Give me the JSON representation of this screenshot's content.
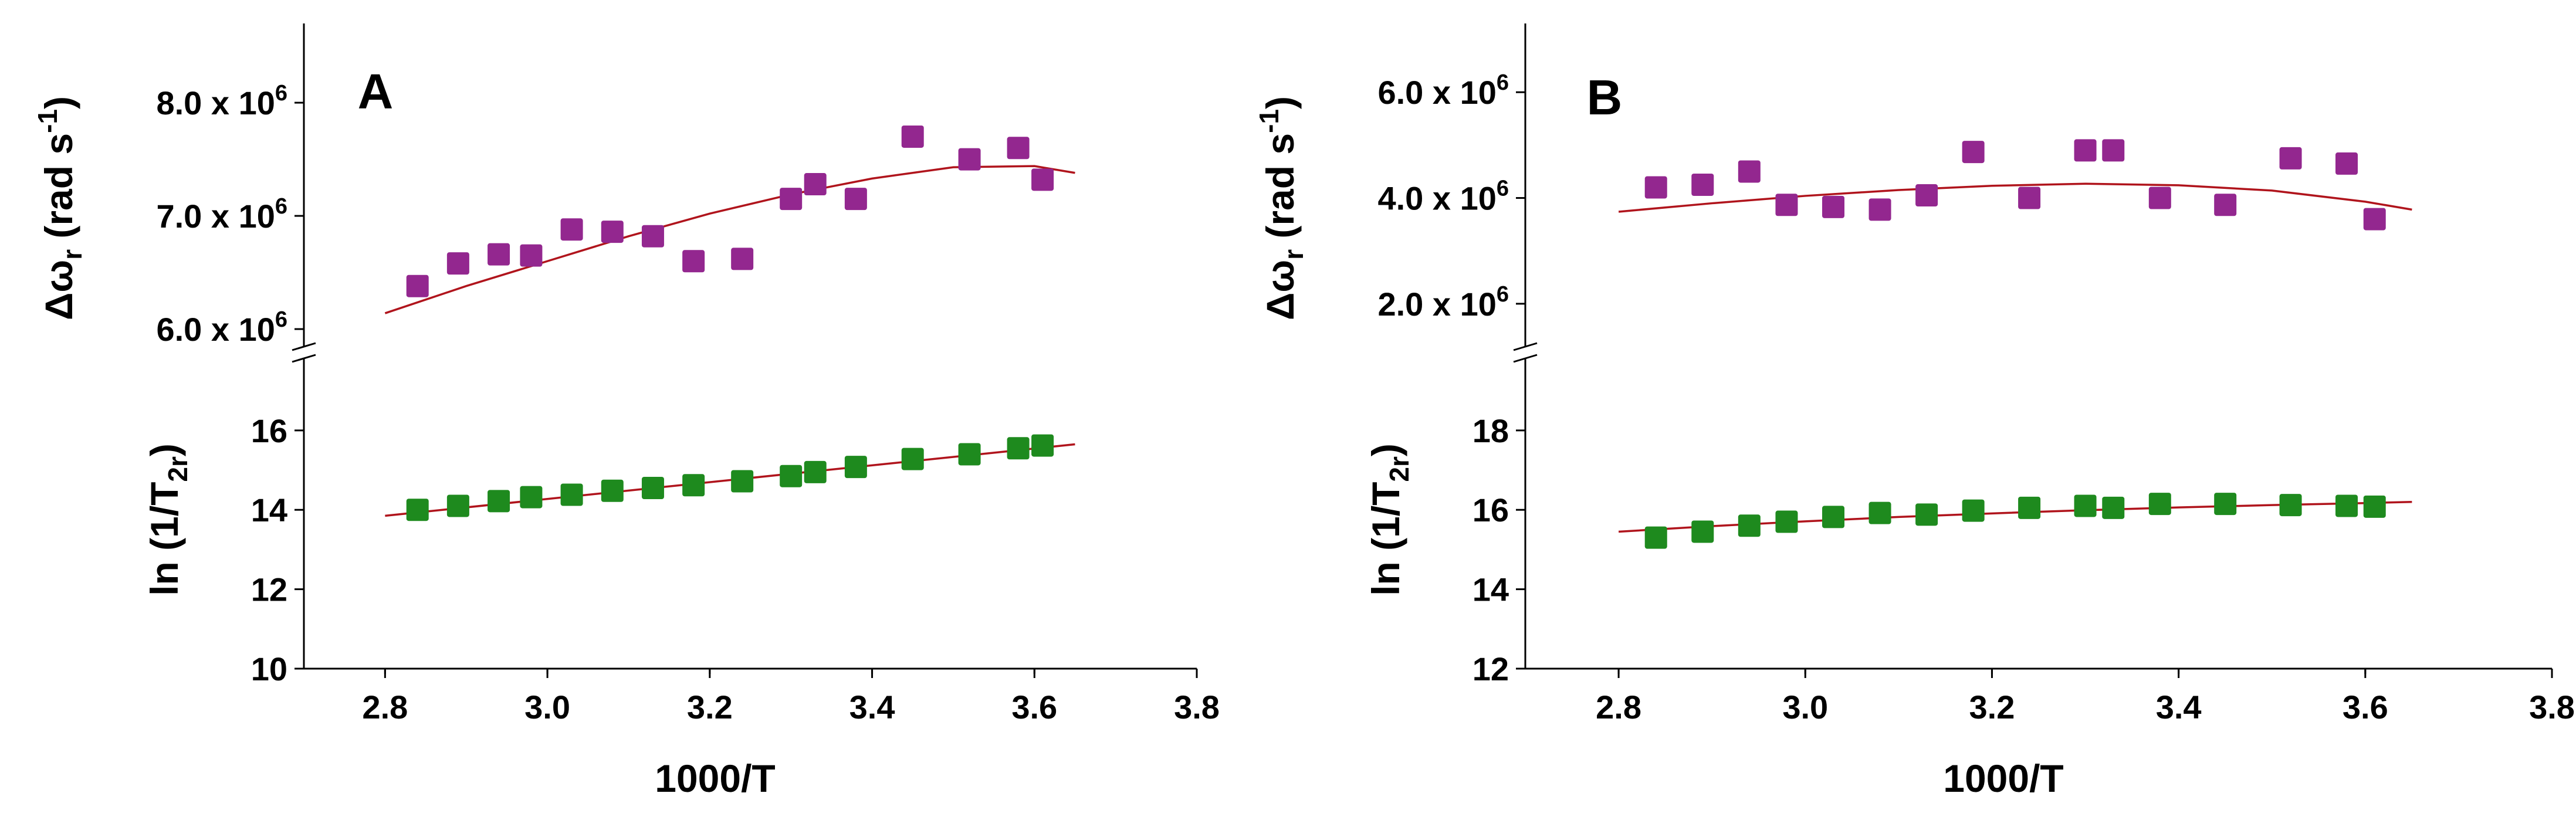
{
  "chart_data": [
    {
      "type": "scatter",
      "panel_label": "A",
      "xlabel": "1000/T",
      "xlim": [
        2.7,
        3.8
      ],
      "xticks": [
        "2.8",
        "3.0",
        "3.2",
        "3.4",
        "3.6",
        "3.8"
      ],
      "upper": {
        "ylabel": "Δω",
        "ylabel_sub": "r",
        "ylabel_units": " (rad s",
        "ylabel_sup": "-1",
        "ylabel_close": ")",
        "ylim": [
          5.85,
          8.7
        ],
        "yticks": [
          {
            "value": 6.0,
            "mantissa": "6.0 x 10",
            "exp": "6"
          },
          {
            "value": 7.0,
            "mantissa": "7.0 x 10",
            "exp": "6"
          },
          {
            "value": 8.0,
            "mantissa": "8.0 x 10",
            "exp": "6"
          }
        ],
        "series": [
          {
            "name": "Δω_r (x 10^6 rad s^-1)",
            "color": "#93278F",
            "x": [
              2.84,
              2.89,
              2.94,
              2.98,
              3.03,
              3.08,
              3.13,
              3.18,
              3.24,
              3.3,
              3.33,
              3.38,
              3.45,
              3.52,
              3.58,
              3.61
            ],
            "y": [
              6.38,
              6.58,
              6.66,
              6.65,
              6.88,
              6.86,
              6.82,
              6.6,
              6.62,
              7.15,
              7.28,
              7.15,
              7.7,
              7.5,
              7.6,
              7.32
            ]
          }
        ],
        "fit": {
          "color": "#B0141C",
          "x": [
            2.8,
            2.9,
            3.0,
            3.1,
            3.2,
            3.3,
            3.4,
            3.5,
            3.6,
            3.65
          ],
          "y": [
            6.14,
            6.38,
            6.6,
            6.82,
            7.02,
            7.19,
            7.33,
            7.43,
            7.44,
            7.38
          ]
        }
      },
      "lower": {
        "ylabel": "ln (1/T",
        "ylabel_sub": "2r",
        "ylabel_close": ")",
        "ylim": [
          10,
          17.8
        ],
        "yticks": [
          "10",
          "12",
          "14",
          "16"
        ],
        "series": [
          {
            "name": "ln(1/T_2r)",
            "color": "#1E8A1E",
            "x": [
              2.84,
              2.89,
              2.94,
              2.98,
              3.03,
              3.08,
              3.13,
              3.18,
              3.24,
              3.3,
              3.33,
              3.38,
              3.45,
              3.52,
              3.58,
              3.61
            ],
            "y": [
              14.0,
              14.1,
              14.22,
              14.32,
              14.38,
              14.48,
              14.55,
              14.62,
              14.72,
              14.85,
              14.95,
              15.08,
              15.28,
              15.4,
              15.55,
              15.62
            ]
          }
        ],
        "fit": {
          "color": "#B0141C",
          "x": [
            2.8,
            3.65
          ],
          "y": [
            13.85,
            15.65
          ]
        }
      }
    },
    {
      "type": "scatter",
      "panel_label": "B",
      "xlabel": "1000/T",
      "xlim": [
        2.7,
        3.8
      ],
      "xticks": [
        "2.8",
        "3.0",
        "3.2",
        "3.4",
        "3.6",
        "3.8"
      ],
      "upper": {
        "ylabel": "Δω",
        "ylabel_sub": "r",
        "ylabel_units": " (rad s",
        "ylabel_sup": "-1",
        "ylabel_close": ")",
        "ylim": [
          1.2,
          7.3
        ],
        "yticks": [
          {
            "value": 2.0,
            "mantissa": "2.0 x 10",
            "exp": "6"
          },
          {
            "value": 4.0,
            "mantissa": "4.0 x 10",
            "exp": "6"
          },
          {
            "value": 6.0,
            "mantissa": "6.0 x 10",
            "exp": "6"
          }
        ],
        "series": [
          {
            "name": "Δω_r (x 10^6 rad s^-1)",
            "color": "#93278F",
            "x": [
              2.84,
              2.89,
              2.94,
              2.98,
              3.03,
              3.08,
              3.13,
              3.18,
              3.24,
              3.3,
              3.33,
              3.38,
              3.45,
              3.52,
              3.58,
              3.61
            ],
            "y": [
              4.2,
              4.25,
              4.5,
              3.87,
              3.83,
              3.78,
              4.05,
              4.87,
              4.0,
              4.9,
              4.9,
              4.0,
              3.87,
              4.75,
              4.65,
              3.6
            ]
          }
        ],
        "fit": {
          "color": "#B0141C",
          "x": [
            2.8,
            2.9,
            3.0,
            3.1,
            3.2,
            3.3,
            3.4,
            3.5,
            3.6,
            3.65
          ],
          "y": [
            3.74,
            3.9,
            4.04,
            4.15,
            4.23,
            4.27,
            4.24,
            4.14,
            3.93,
            3.78
          ]
        }
      },
      "lower": {
        "ylabel": "ln (1/T",
        "ylabel_sub": "2r",
        "ylabel_close": ")",
        "ylim": [
          12,
          19.8
        ],
        "yticks": [
          "12",
          "14",
          "16",
          "18"
        ],
        "series": [
          {
            "name": "ln(1/T_2r)",
            "color": "#1E8A1E",
            "x": [
              2.84,
              2.89,
              2.94,
              2.98,
              3.03,
              3.08,
              3.13,
              3.18,
              3.24,
              3.3,
              3.33,
              3.38,
              3.45,
              3.52,
              3.58,
              3.61
            ],
            "y": [
              15.3,
              15.45,
              15.6,
              15.7,
              15.82,
              15.92,
              15.88,
              15.98,
              16.05,
              16.1,
              16.05,
              16.15,
              16.15,
              16.12,
              16.1,
              16.08
            ]
          }
        ],
        "fit": {
          "color": "#B0141C",
          "x": [
            2.8,
            2.9,
            3.0,
            3.1,
            3.2,
            3.3,
            3.4,
            3.5,
            3.6,
            3.65
          ],
          "y": [
            15.45,
            15.59,
            15.71,
            15.82,
            15.91,
            15.99,
            16.06,
            16.12,
            16.17,
            16.2
          ]
        }
      }
    }
  ]
}
